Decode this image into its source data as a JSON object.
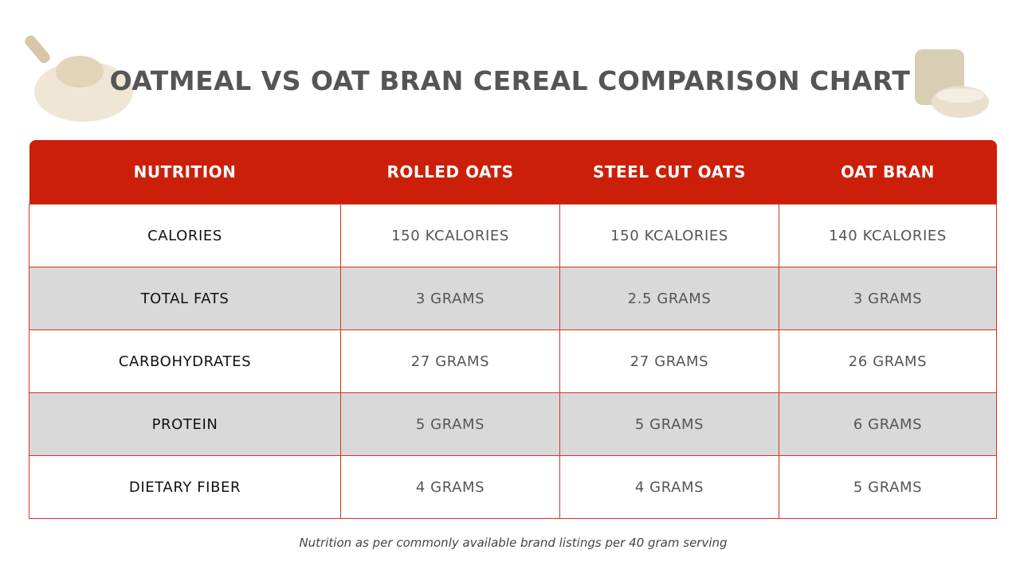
{
  "header": {
    "title": "OATMEAL VS OAT BRAN CEREAL COMPARISON CHART"
  },
  "table": {
    "columns": [
      "NUTRITION",
      "ROLLED OATS",
      "STEEL CUT OATS",
      "OAT BRAN"
    ],
    "rows": [
      [
        "CALORIES",
        "150 KCALORIES",
        "150 KCALORIES",
        "140 KCALORIES"
      ],
      [
        "TOTAL FATS",
        "3 GRAMS",
        "2.5 GRAMS",
        "3 GRAMS"
      ],
      [
        "CARBOHYDRATES",
        "27 GRAMS",
        "27 GRAMS",
        "26 GRAMS"
      ],
      [
        "PROTEIN",
        "5 GRAMS",
        "5 GRAMS",
        "6 GRAMS"
      ],
      [
        "DIETARY FIBER",
        "4 GRAMS",
        "4 GRAMS",
        "5 GRAMS"
      ]
    ]
  },
  "footnote": "Nutrition as per commonly available brand listings per 40 gram serving"
}
